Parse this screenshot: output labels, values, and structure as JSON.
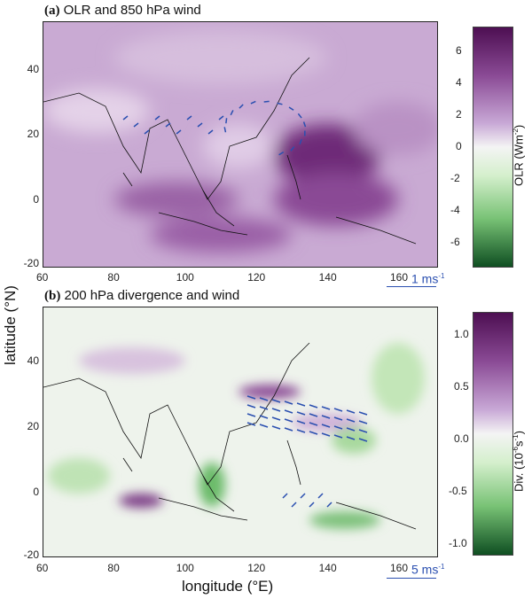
{
  "panel_a": {
    "label": "(a)",
    "title": "OLR and 850 hPa wind",
    "scale_label": "1 ms",
    "scale_exp": "-1"
  },
  "panel_b": {
    "label": "(b)",
    "title": "200 hPa divergence and wind",
    "scale_label": "5 ms",
    "scale_exp": "-1"
  },
  "y_axis_label": "latitude (°N)",
  "x_axis_label": "longitude (°E)",
  "lon_ticks": [
    "60",
    "80",
    "100",
    "120",
    "140",
    "160"
  ],
  "lat_ticks": [
    "40",
    "20",
    "0",
    "-20"
  ],
  "colorbar_a": {
    "title": "OLR (Wm",
    "exp": "-2",
    "close": ")",
    "ticks": [
      "6",
      "4",
      "2",
      "0",
      "-2",
      "-4",
      "-6"
    ]
  },
  "colorbar_b": {
    "title": "Div. (10",
    "exp": "-6",
    "unit": "s",
    "exp2": "-1",
    "close": ")",
    "ticks": [
      "1.0",
      "0.5",
      "0.0",
      "-0.5",
      "-1.0"
    ]
  },
  "colors": {
    "purple_dark": "#4d0f52",
    "purple_light": "#e8d6ea",
    "white": "#f4f4f4",
    "green_light": "#d4efcc",
    "green_dark": "#0f4f22",
    "arrow": "#2a4fb0"
  }
}
